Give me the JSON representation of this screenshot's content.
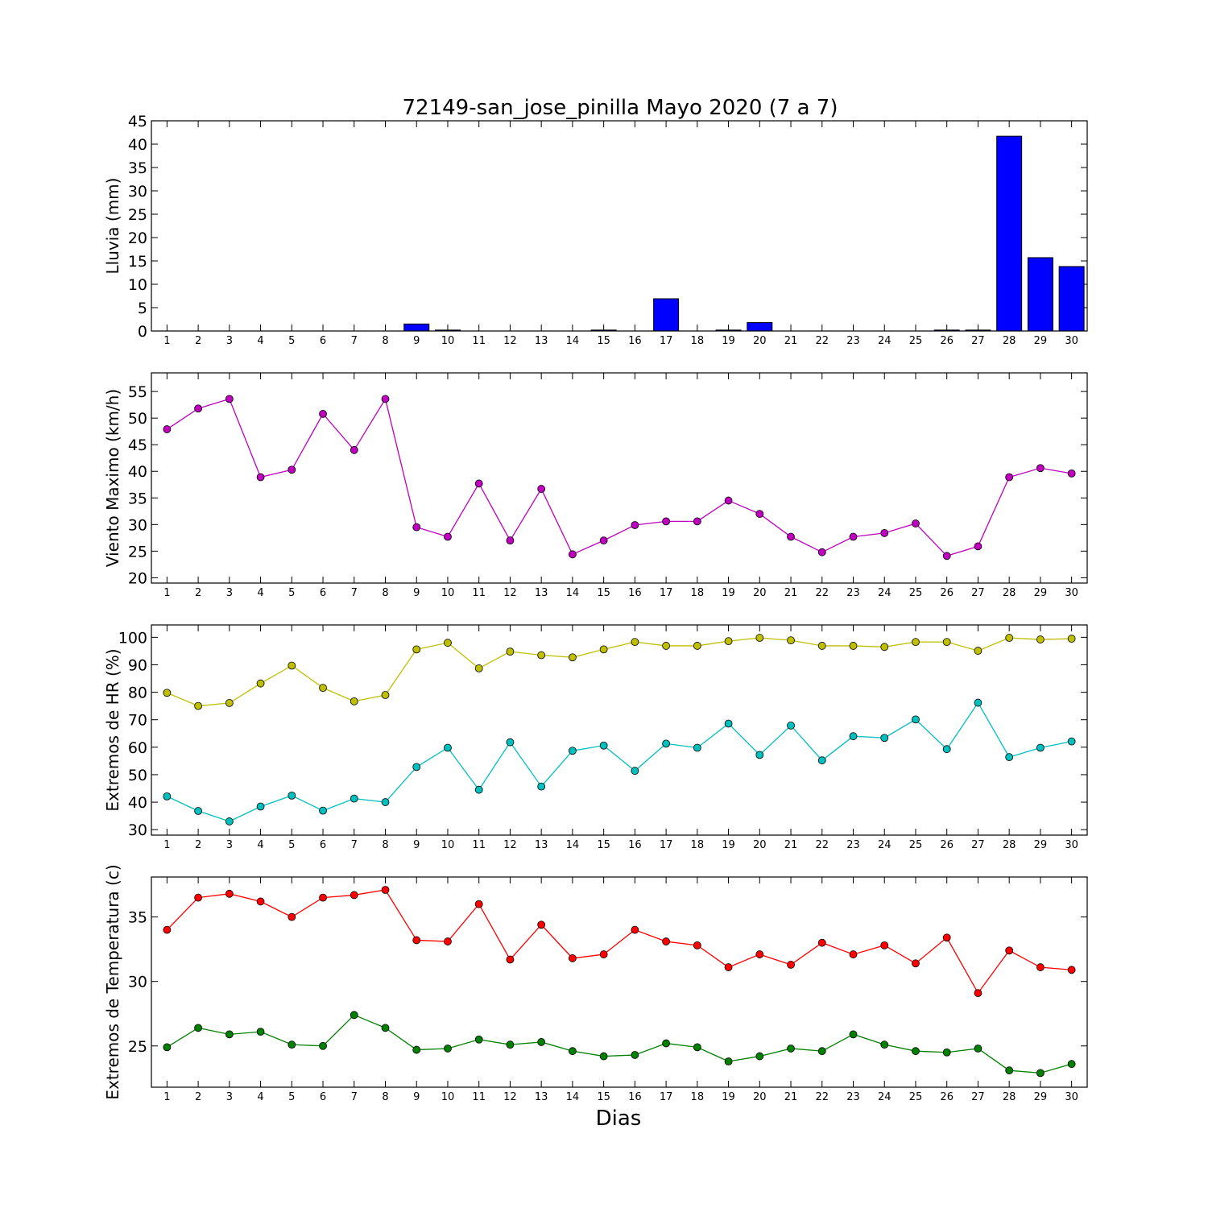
{
  "title": "72149-san_jose_pinilla Mayo 2020  (7 a 7)",
  "xlabel": "Dias",
  "chart_data": [
    {
      "type": "bar",
      "ylabel": "Lluvia (mm)",
      "x": [
        1,
        2,
        3,
        4,
        5,
        6,
        7,
        8,
        9,
        10,
        11,
        12,
        13,
        14,
        15,
        16,
        17,
        18,
        19,
        20,
        21,
        22,
        23,
        24,
        25,
        26,
        27,
        28,
        29,
        30
      ],
      "ylim": [
        0,
        45
      ],
      "yticks": [
        0,
        5,
        10,
        15,
        20,
        25,
        30,
        35,
        40,
        45
      ],
      "color": "#0000ff",
      "series": [
        {
          "values": [
            0,
            0,
            0,
            0,
            0,
            0,
            0,
            0,
            1.5,
            0.2,
            0,
            0,
            0,
            0,
            0.2,
            0,
            6.9,
            0,
            0.2,
            1.8,
            0,
            0,
            0,
            0,
            0,
            0.2,
            0.2,
            41.7,
            15.7,
            13.8
          ]
        }
      ]
    },
    {
      "type": "line",
      "ylabel": "Viento Maximo (km/h)",
      "x": [
        1,
        2,
        3,
        4,
        5,
        6,
        7,
        8,
        9,
        10,
        11,
        12,
        13,
        14,
        15,
        16,
        17,
        18,
        19,
        20,
        21,
        22,
        23,
        24,
        25,
        26,
        27,
        28,
        29,
        30
      ],
      "ylim": [
        19,
        58.5
      ],
      "yticks": [
        20,
        25,
        30,
        35,
        40,
        45,
        50,
        55
      ],
      "series": [
        {
          "color": "#bf00bf",
          "values": [
            47.9,
            51.8,
            53.6,
            38.9,
            40.3,
            50.8,
            44.0,
            53.6,
            29.5,
            27.7,
            37.7,
            27.0,
            36.7,
            24.4,
            27.0,
            29.9,
            30.6,
            30.6,
            34.5,
            32.0,
            27.7,
            24.8,
            27.7,
            28.4,
            30.2,
            24.1,
            25.9,
            38.9,
            40.6,
            39.6
          ]
        }
      ]
    },
    {
      "type": "line",
      "ylabel": "Extremos de HR (%)",
      "x": [
        1,
        2,
        3,
        4,
        5,
        6,
        7,
        8,
        9,
        10,
        11,
        12,
        13,
        14,
        15,
        16,
        17,
        18,
        19,
        20,
        21,
        22,
        23,
        24,
        25,
        26,
        27,
        28,
        29,
        30
      ],
      "ylim": [
        28,
        104.5
      ],
      "yticks": [
        30,
        40,
        50,
        60,
        70,
        80,
        90,
        100
      ],
      "series": [
        {
          "color": "#bfbf00",
          "values": [
            79.8,
            75.0,
            76.1,
            83.2,
            89.7,
            81.6,
            76.7,
            79.0,
            95.6,
            98.0,
            88.7,
            94.8,
            93.5,
            92.7,
            95.6,
            98.3,
            96.9,
            96.9,
            98.6,
            99.8,
            98.9,
            96.9,
            96.9,
            96.5,
            98.3,
            98.3,
            95.1,
            99.8,
            99.2,
            99.5
          ]
        },
        {
          "color": "#00bfbf",
          "values": [
            42.1,
            36.8,
            33.0,
            38.4,
            42.4,
            36.9,
            41.3,
            40.0,
            52.8,
            59.8,
            44.5,
            61.8,
            45.7,
            58.7,
            60.6,
            51.4,
            61.3,
            59.8,
            68.6,
            57.2,
            67.9,
            55.2,
            64.0,
            63.4,
            70.1,
            59.3,
            76.2,
            56.4,
            59.8,
            62.1
          ]
        }
      ]
    },
    {
      "type": "line",
      "ylabel": "Extremos de Temperatura (c)",
      "x": [
        1,
        2,
        3,
        4,
        5,
        6,
        7,
        8,
        9,
        10,
        11,
        12,
        13,
        14,
        15,
        16,
        17,
        18,
        19,
        20,
        21,
        22,
        23,
        24,
        25,
        26,
        27,
        28,
        29,
        30
      ],
      "ylim": [
        21.8,
        38.1
      ],
      "yticks": [
        25,
        30,
        35
      ],
      "series": [
        {
          "color": "#ff0000",
          "values": [
            34.0,
            36.5,
            36.8,
            36.2,
            35.0,
            36.5,
            36.7,
            37.1,
            33.2,
            33.1,
            36.0,
            31.7,
            34.4,
            31.8,
            32.1,
            34.0,
            33.1,
            32.8,
            31.1,
            32.1,
            31.3,
            33.0,
            32.1,
            32.8,
            31.4,
            33.4,
            29.1,
            32.4,
            31.1,
            30.9
          ]
        },
        {
          "color": "#008000",
          "values": [
            24.9,
            26.4,
            25.9,
            26.1,
            25.1,
            25.0,
            27.4,
            26.4,
            24.7,
            24.8,
            25.5,
            25.1,
            25.3,
            24.6,
            24.2,
            24.3,
            25.2,
            24.9,
            23.8,
            24.2,
            24.8,
            24.6,
            25.9,
            25.1,
            24.6,
            24.5,
            24.8,
            23.1,
            22.9,
            23.6
          ]
        }
      ]
    }
  ]
}
